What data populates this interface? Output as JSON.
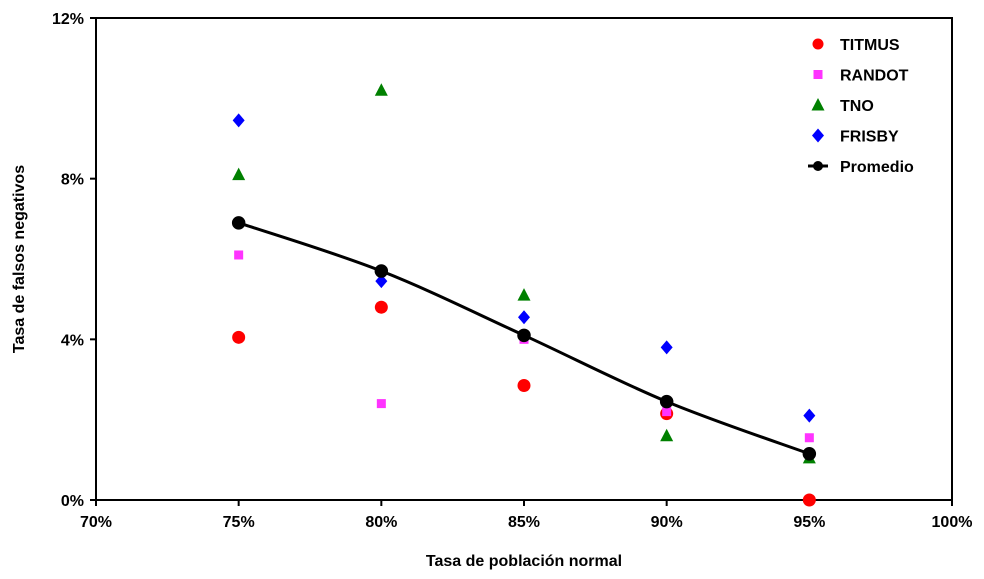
{
  "chart_data": {
    "type": "scatter",
    "title": "",
    "xlabel": "Tasa de población normal",
    "ylabel": "Tasa de falsos negativos",
    "xlim": [
      70,
      100
    ],
    "ylim": [
      0,
      12
    ],
    "x_ticks": [
      "70%",
      "75%",
      "80%",
      "85%",
      "90%",
      "95%",
      "100%"
    ],
    "y_ticks": [
      "0%",
      "4%",
      "8%",
      "12%"
    ],
    "x_tick_values": [
      70,
      75,
      80,
      85,
      90,
      95,
      100
    ],
    "y_tick_values": [
      0,
      4,
      8,
      12
    ],
    "grid": false,
    "legend_position": "top-right",
    "series": [
      {
        "name": "TITMUS",
        "marker": "circle",
        "color": "#ff0000",
        "points": [
          [
            75,
            4.05
          ],
          [
            80,
            4.8
          ],
          [
            85,
            2.85
          ],
          [
            90,
            2.15
          ],
          [
            95,
            0.0
          ]
        ]
      },
      {
        "name": "RANDOT",
        "marker": "square",
        "color": "#ff33ff",
        "points": [
          [
            75,
            6.1
          ],
          [
            80,
            2.4
          ],
          [
            85,
            4.0
          ],
          [
            90,
            2.2
          ],
          [
            95,
            1.55
          ]
        ]
      },
      {
        "name": "TNO",
        "marker": "triangle",
        "color": "#008000",
        "points": [
          [
            75,
            8.1
          ],
          [
            80,
            10.2
          ],
          [
            85,
            5.1
          ],
          [
            90,
            1.6
          ],
          [
            95,
            1.05
          ]
        ]
      },
      {
        "name": "FRISBY",
        "marker": "diamond",
        "color": "#0000ff",
        "points": [
          [
            75,
            9.45
          ],
          [
            80,
            5.45
          ],
          [
            85,
            4.55
          ],
          [
            90,
            3.8
          ],
          [
            95,
            2.1
          ]
        ]
      },
      {
        "name": "Promedio",
        "marker": "circle-line",
        "color": "#000000",
        "points": [
          [
            75,
            6.9
          ],
          [
            80,
            5.7
          ],
          [
            85,
            4.1
          ],
          [
            90,
            2.45
          ],
          [
            95,
            1.15
          ]
        ]
      }
    ]
  }
}
